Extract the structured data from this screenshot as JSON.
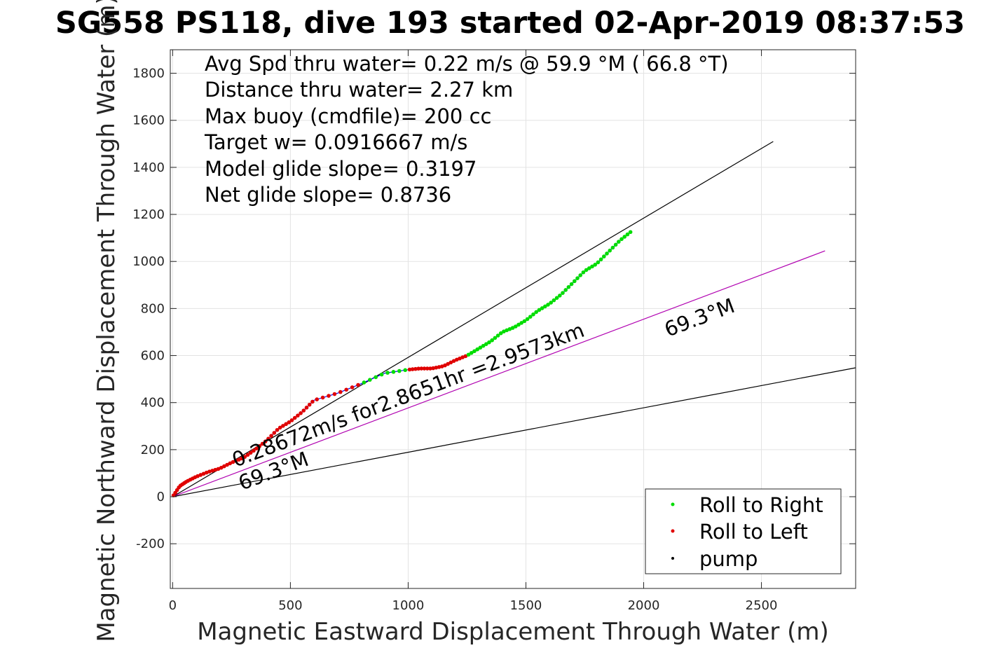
{
  "chart_data": {
    "type": "line",
    "title": "SG558 PS118, dive 193 started 02-Apr-2019 08:37:53",
    "xlabel": "Magnetic Eastward Displacement Through Water (m)",
    "ylabel": "Magnetic Northward Displacement Through Water (m)",
    "xlim": [
      -10,
      2900
    ],
    "ylim": [
      -390,
      1900
    ],
    "xticks": [
      0,
      500,
      1000,
      1500,
      2000,
      2500
    ],
    "yticks": [
      -200,
      0,
      200,
      400,
      600,
      800,
      1000,
      1200,
      1400,
      1600,
      1800
    ],
    "grid": true,
    "annotations": [
      "Avg Spd thru water=  0.22 m/s @  59.9 °M ( 66.8 °T)",
      "Distance thru water=  2.27 km",
      "Max buoy (cmdfile)= 200 cc",
      "Target w= 0.0916667 m/s",
      "Model glide slope= 0.3197",
      "Net glide slope= 0.8736"
    ],
    "line_labels": {
      "current": "0.28672m/s for2.8651hr =2.9573km",
      "heading_upper": "69.3°M",
      "heading_lower": "69.3°M"
    },
    "reference_lines": [
      {
        "name": "upper",
        "color": "#000000",
        "x": [
          0,
          2550
        ],
        "y": [
          0,
          1510
        ]
      },
      {
        "name": "heading",
        "color": "#b000b0",
        "x": [
          0,
          2770
        ],
        "y": [
          0,
          1045
        ]
      },
      {
        "name": "lower",
        "color": "#000000",
        "x": [
          0,
          2900
        ],
        "y": [
          0,
          548
        ]
      }
    ],
    "track": {
      "color": "#0000ff",
      "x": [
        0,
        30,
        60,
        100,
        150,
        200,
        250,
        300,
        350,
        400,
        450,
        500,
        550,
        600,
        700,
        800,
        900,
        1000,
        1050,
        1100,
        1150,
        1200,
        1250,
        1300,
        1350,
        1400,
        1450,
        1500,
        1550,
        1600,
        1650,
        1700,
        1750,
        1800,
        1850,
        1900,
        1950
      ],
      "y": [
        0,
        45,
        65,
        85,
        105,
        120,
        145,
        165,
        200,
        240,
        290,
        320,
        360,
        410,
        440,
        480,
        525,
        540,
        545,
        545,
        555,
        580,
        600,
        630,
        660,
        700,
        720,
        750,
        790,
        820,
        860,
        910,
        960,
        990,
        1040,
        1090,
        1130
      ]
    },
    "legend": {
      "position": "bottom-right",
      "entries": [
        {
          "label": "Roll to Right",
          "color": "#00dd00"
        },
        {
          "label": "Roll to Left",
          "color": "#e00000"
        },
        {
          "label": "pump",
          "color": "#000000"
        }
      ]
    }
  }
}
